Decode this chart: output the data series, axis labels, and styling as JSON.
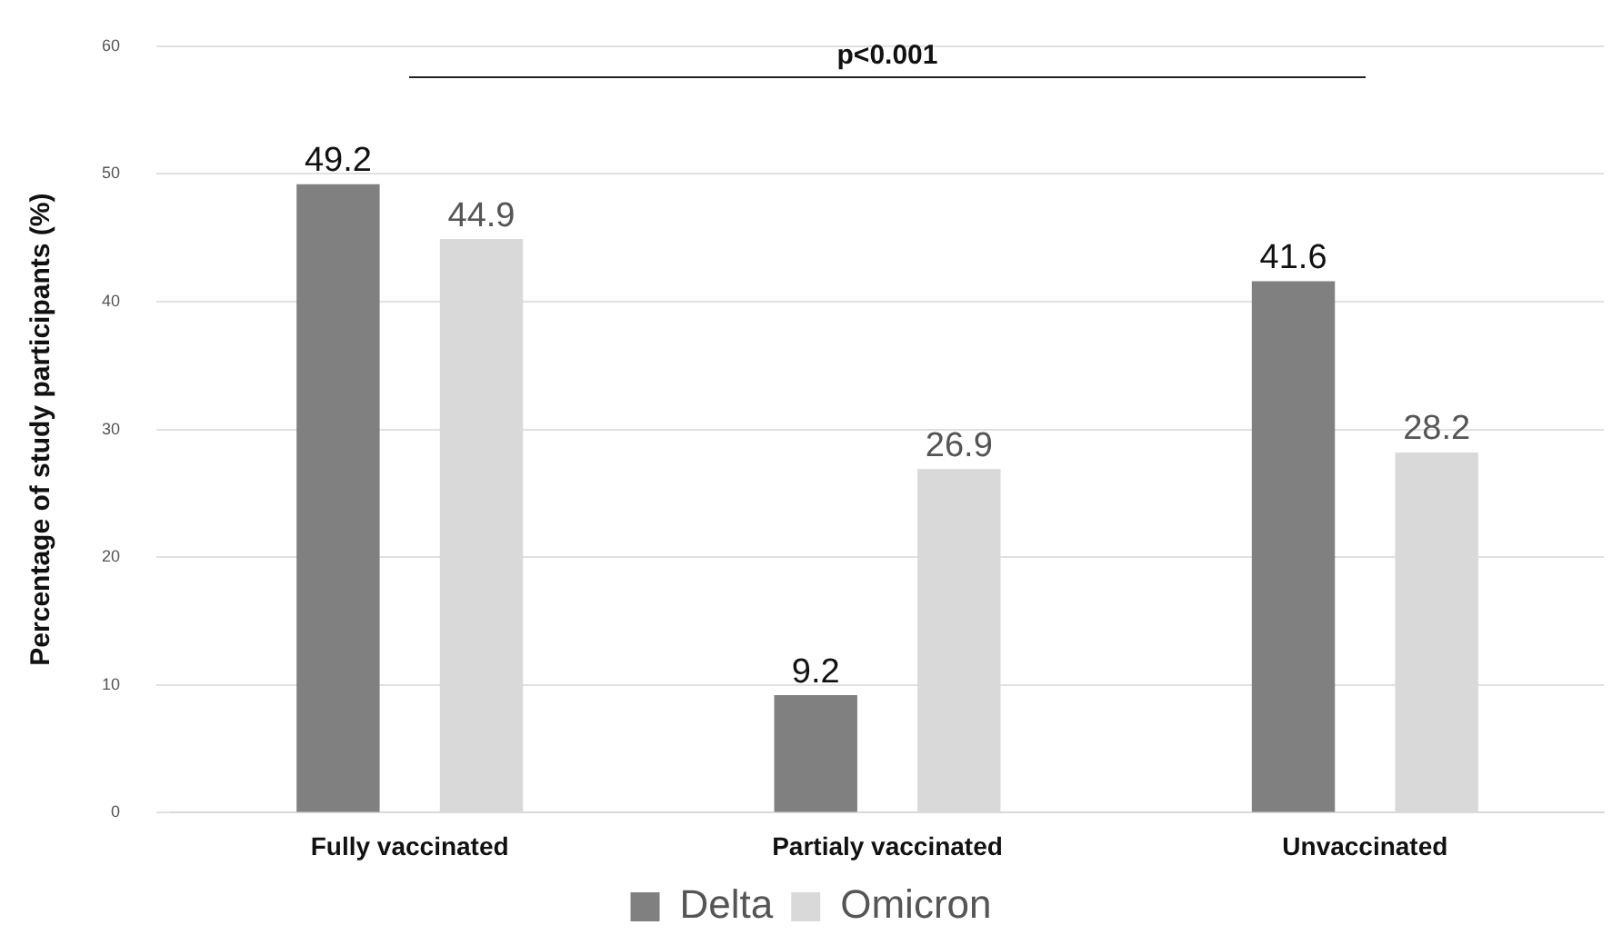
{
  "chart_data": {
    "type": "bar",
    "ylabel": "Percentage of study participants (%)",
    "categories": [
      "Fully vaccinated",
      "Partialy vaccinated",
      "Unvaccinated"
    ],
    "series": [
      {
        "name": "Delta",
        "color": "#808080",
        "values": [
          49.2,
          9.2,
          41.6
        ]
      },
      {
        "name": "Omicron",
        "color": "#d9d9d9",
        "values": [
          44.9,
          26.9,
          28.2
        ]
      }
    ],
    "ylim": [
      0,
      60
    ],
    "yticks": [
      0,
      10,
      20,
      30,
      40,
      50,
      60
    ],
    "grid": "y",
    "legend": "bottom",
    "data_labels": true,
    "annotations": [
      "p<0.001"
    ]
  }
}
